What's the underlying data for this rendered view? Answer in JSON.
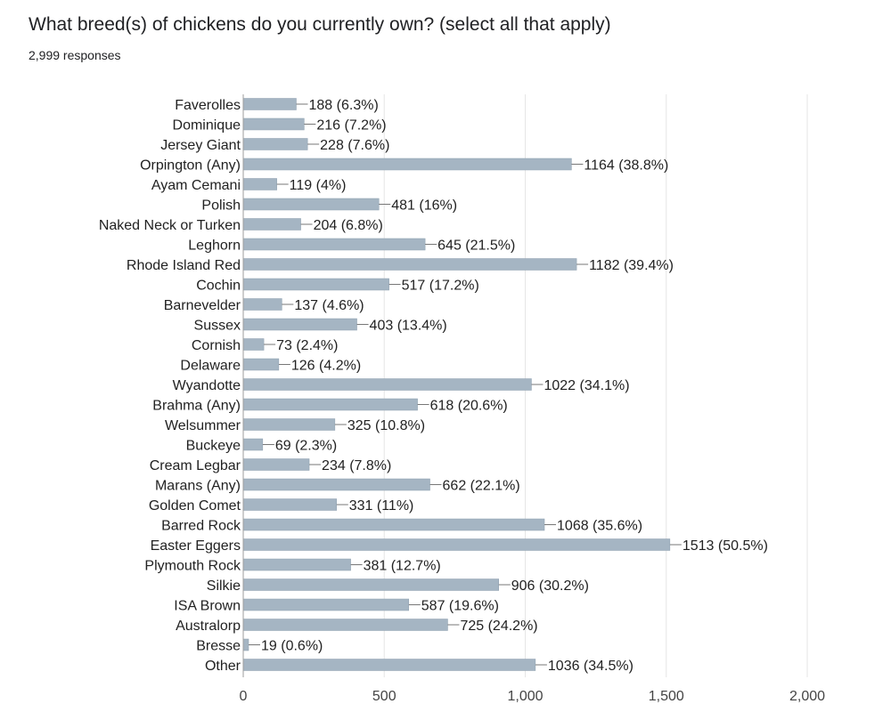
{
  "header": {
    "title": "What breed(s) of chickens do you currently own? (select all that apply)",
    "responses": "2,999 responses"
  },
  "colors": {
    "bar": "#a5b5c3",
    "bar_edge": "#8ea0b0",
    "grid": "#e6e6e6",
    "axis": "#9e9e9e",
    "leader": "#777777"
  },
  "chart_data": {
    "type": "bar",
    "orientation": "horizontal",
    "categories": [
      "Faverolles",
      "Dominique",
      "Jersey Giant",
      "Orpington (Any)",
      "Ayam Cemani",
      "Polish",
      "Naked Neck or Turken",
      "Leghorn",
      "Rhode Island Red",
      "Cochin",
      "Barnevelder",
      "Sussex",
      "Cornish",
      "Delaware",
      "Wyandotte",
      "Brahma (Any)",
      "Welsummer",
      "Buckeye",
      "Cream Legbar",
      "Marans (Any)",
      "Golden Comet",
      "Barred Rock",
      "Easter Eggers",
      "Plymouth Rock",
      "Silkie",
      "ISA Brown",
      "Australorp",
      "Bresse",
      "Other"
    ],
    "values": [
      188,
      216,
      228,
      1164,
      119,
      481,
      204,
      645,
      1182,
      517,
      137,
      403,
      73,
      126,
      1022,
      618,
      325,
      69,
      234,
      662,
      331,
      1068,
      1513,
      381,
      906,
      587,
      725,
      19,
      1036
    ],
    "labels": [
      "188 (6.3%)",
      "216 (7.2%)",
      "228 (7.6%)",
      "1164 (38.8%)",
      "119 (4%)",
      "481 (16%)",
      "204 (6.8%)",
      "645 (21.5%)",
      "1182 (39.4%)",
      "517 (17.2%)",
      "137 (4.6%)",
      "403 (13.4%)",
      "73 (2.4%)",
      "126 (4.2%)",
      "1022 (34.1%)",
      "618 (20.6%)",
      "325 (10.8%)",
      "69 (2.3%)",
      "234 (7.8%)",
      "662 (22.1%)",
      "331 (11%)",
      "1068 (35.6%)",
      "1513 (50.5%)",
      "381 (12.7%)",
      "906 (30.2%)",
      "587 (19.6%)",
      "725 (24.2%)",
      "19 (0.6%)",
      "1036 (34.5%)"
    ],
    "xlim": [
      0,
      2000
    ],
    "xticks": [
      0,
      500,
      1000,
      1500,
      2000
    ],
    "xtick_labels": [
      "0",
      "500",
      "1,000",
      "1,500",
      "2,000"
    ],
    "grid": true
  }
}
